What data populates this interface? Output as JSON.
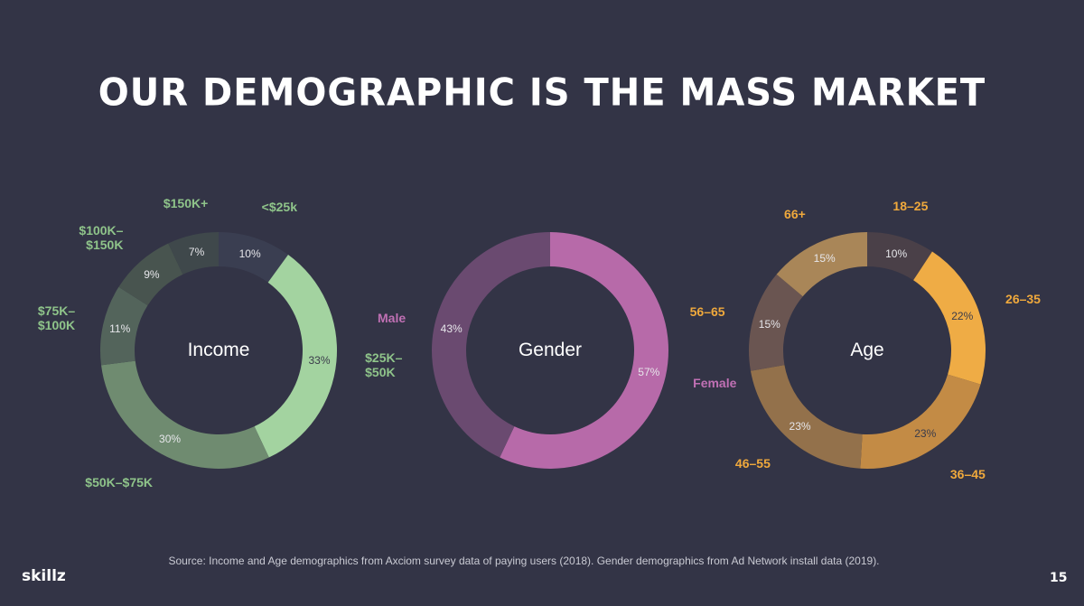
{
  "title": "OUR DEMOGRAPHIC IS THE MASS MARKET",
  "source": "Source: Income and Age demographics from Axciom survey data of paying users (2018).  Gender demographics from Ad Network install data (2019).",
  "logo": "skillz",
  "page_number": "15",
  "chart_data": [
    {
      "type": "donut",
      "center_label": "Income",
      "label_color": "#8fc48a",
      "categories": [
        "<$25k",
        "$25K–\n$50K",
        "$50K–$75K",
        "$75K–\n$100K",
        "$100K–\n$150K",
        "$150K+"
      ],
      "values": [
        10,
        33,
        30,
        11,
        9,
        7
      ],
      "value_labels": [
        "10%",
        "33%",
        "30%",
        "11%",
        "9%",
        "7%"
      ],
      "colors": [
        "#3a3e51",
        "#a3d3a0",
        "#6f8b70",
        "#53645b",
        "#48544f",
        "#3f484b"
      ]
    },
    {
      "type": "donut",
      "center_label": "Gender",
      "label_color": "#c070b4",
      "categories": [
        "Female",
        "Male"
      ],
      "values": [
        57,
        43
      ],
      "value_labels": [
        "57%",
        "43%"
      ],
      "colors": [
        "#b76aa9",
        "#6a4a70"
      ]
    },
    {
      "type": "donut",
      "center_label": "Age",
      "label_color": "#f0a93c",
      "categories": [
        "18–25",
        "26–35",
        "36–45",
        "46–55",
        "56–65",
        "66+"
      ],
      "values": [
        10,
        22,
        23,
        23,
        15,
        15
      ],
      "value_labels": [
        "10%",
        "22%",
        "23%",
        "23%",
        "15%",
        "15%"
      ],
      "colors": [
        "#4a4048",
        "#efac45",
        "#c38b45",
        "#93714b",
        "#6a5551",
        "#a98658"
      ]
    }
  ]
}
